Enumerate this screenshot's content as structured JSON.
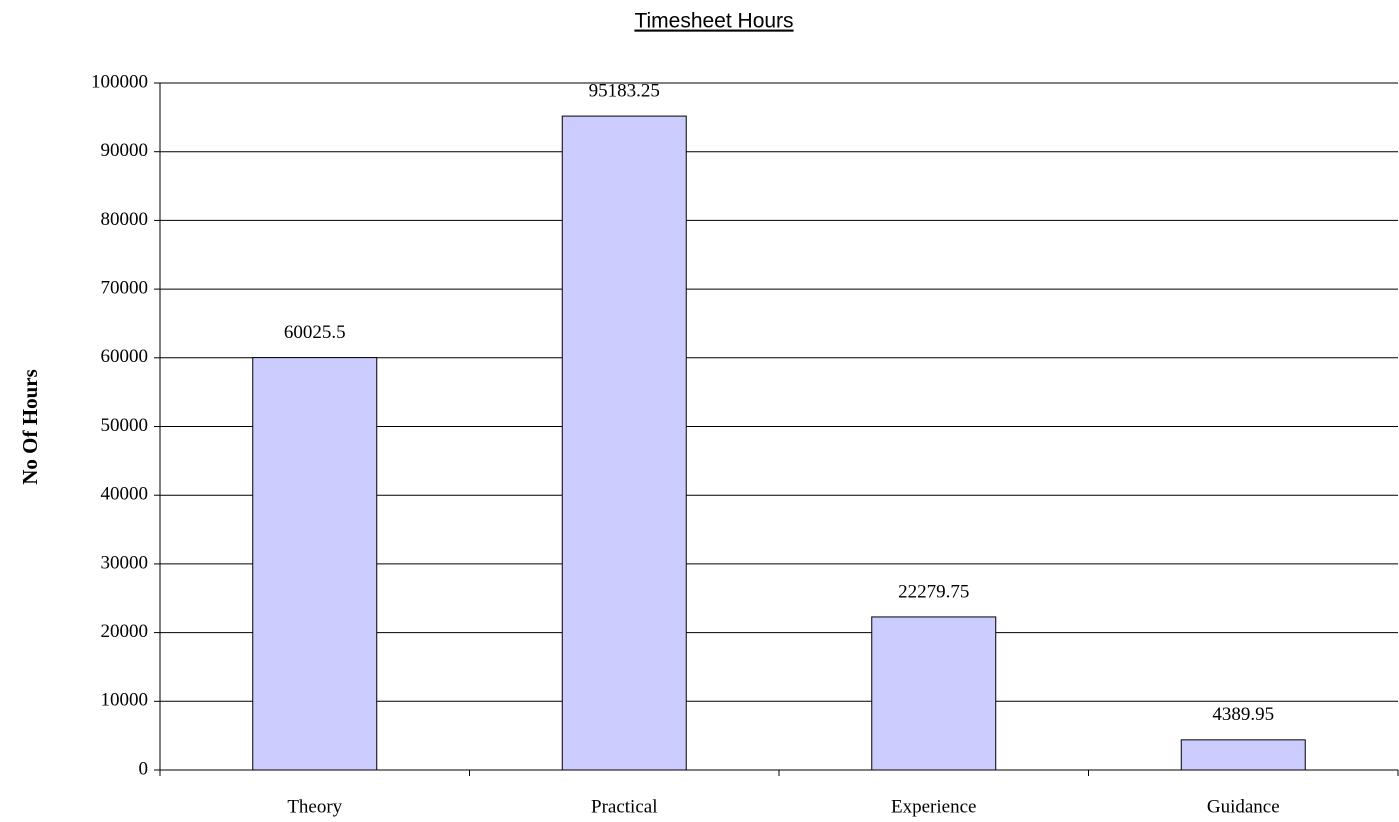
{
  "chart_data": {
    "type": "bar",
    "title": "Timesheet Hours",
    "y_label": "No Of Hours",
    "categories": [
      "Theory",
      "Practical",
      "Experience",
      "Guidance"
    ],
    "values": [
      60025.5,
      95183.25,
      22279.75,
      4389.95
    ],
    "color": "#ccccff",
    "ylim": [
      0,
      100000
    ],
    "yticks": [
      0,
      10000,
      20000,
      30000,
      40000,
      50000,
      60000,
      70000,
      80000,
      90000,
      100000
    ],
    "grid": true
  }
}
